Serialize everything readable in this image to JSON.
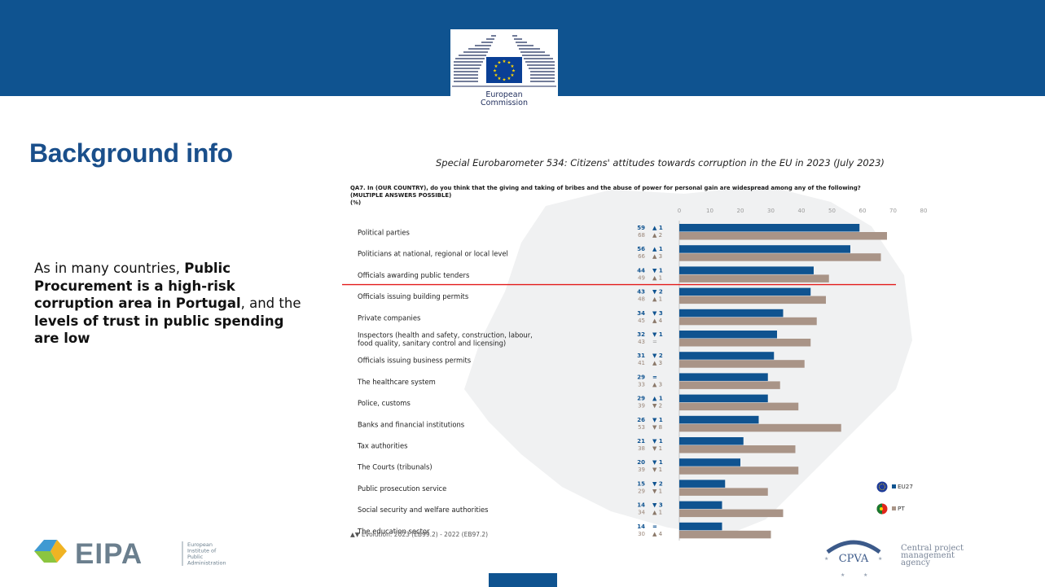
{
  "header": {
    "logo_line1": "European",
    "logo_line2": "Commission",
    "brand_color": "#0f5390"
  },
  "slide": {
    "title": "Background info",
    "subtitle": "Special Eurobarometer 534: Citizens' attitudes towards corruption in the EU in 2023 (July 2023)",
    "body": {
      "part1": "As in many countries, ",
      "bold1": "Public Procurement is a high-risk corruption area in Portugal",
      "part2": ", and the ",
      "bold2": "levels of trust in public spending are low"
    }
  },
  "chart_data": {
    "type": "bar",
    "title": "QA7. In (OUR COUNTRY), do you think that the giving and taking of bribes and the abuse of power for personal gain are widespread among any of the following?",
    "subtitle": "(MULTIPLE ANSWERS POSSIBLE)",
    "unit": "(%)",
    "orientation": "horizontal",
    "xlim": [
      0,
      80
    ],
    "xticks": [
      0,
      10,
      20,
      30,
      40,
      50,
      60,
      70,
      80
    ],
    "categories": [
      [
        "Political parties"
      ],
      [
        "Politicians at national, regional or local level"
      ],
      [
        "Officials awarding public tenders"
      ],
      [
        "Officials issuing building permits"
      ],
      [
        "Private companies"
      ],
      [
        "Inspectors (health and safety, construction, labour,",
        "food quality, sanitary control and licensing)"
      ],
      [
        "Officials issuing business permits"
      ],
      [
        "The healthcare system"
      ],
      [
        "Police, customs"
      ],
      [
        "Banks and financial institutions"
      ],
      [
        "Tax authorities"
      ],
      [
        "The Courts (tribunals)"
      ],
      [
        "Public prosecution service"
      ],
      [
        "Social security and welfare authorities"
      ],
      [
        "The education sector"
      ]
    ],
    "series": [
      {
        "name": "EU27",
        "color": "#0f5390",
        "values": [
          59,
          56,
          44,
          43,
          34,
          32,
          31,
          29,
          29,
          26,
          21,
          20,
          15,
          14,
          14
        ],
        "evolution": [
          "▲ 1",
          "▲ 1",
          "▼ 1",
          "▼ 2",
          "▼ 3",
          "▼ 1",
          "▼ 2",
          "=",
          "▲ 1",
          "▼ 1",
          "▼ 1",
          "▼ 1",
          "▼ 2",
          "▼ 3",
          "="
        ]
      },
      {
        "name": "PT",
        "color": "#a99487",
        "values": [
          68,
          66,
          49,
          48,
          45,
          43,
          41,
          33,
          39,
          53,
          38,
          39,
          29,
          34,
          30
        ],
        "evolution": [
          "▲ 2",
          "▲ 3",
          "▲ 1",
          "▲ 1",
          "▲ 4",
          "=",
          "▲ 3",
          "▲ 3",
          "▼ 2",
          "▼ 8",
          "▼ 1",
          "▼ 1",
          "▼ 1",
          "▲ 1",
          "▲ 4"
        ]
      }
    ],
    "evolution_note": "▲▼ Evolution: 2023 (EB99.2) - 2022 (EB97.2)",
    "legend_position": "bottom-right",
    "highlight_line_color": "#e31b1b"
  },
  "footer": {
    "eipa_name": "EIPA",
    "eipa_lines": [
      "European",
      "Institute of",
      "Public",
      "Administration"
    ],
    "cpva_name": "CPVA",
    "cpva_lines": [
      "Central project",
      "management",
      "agency"
    ]
  }
}
